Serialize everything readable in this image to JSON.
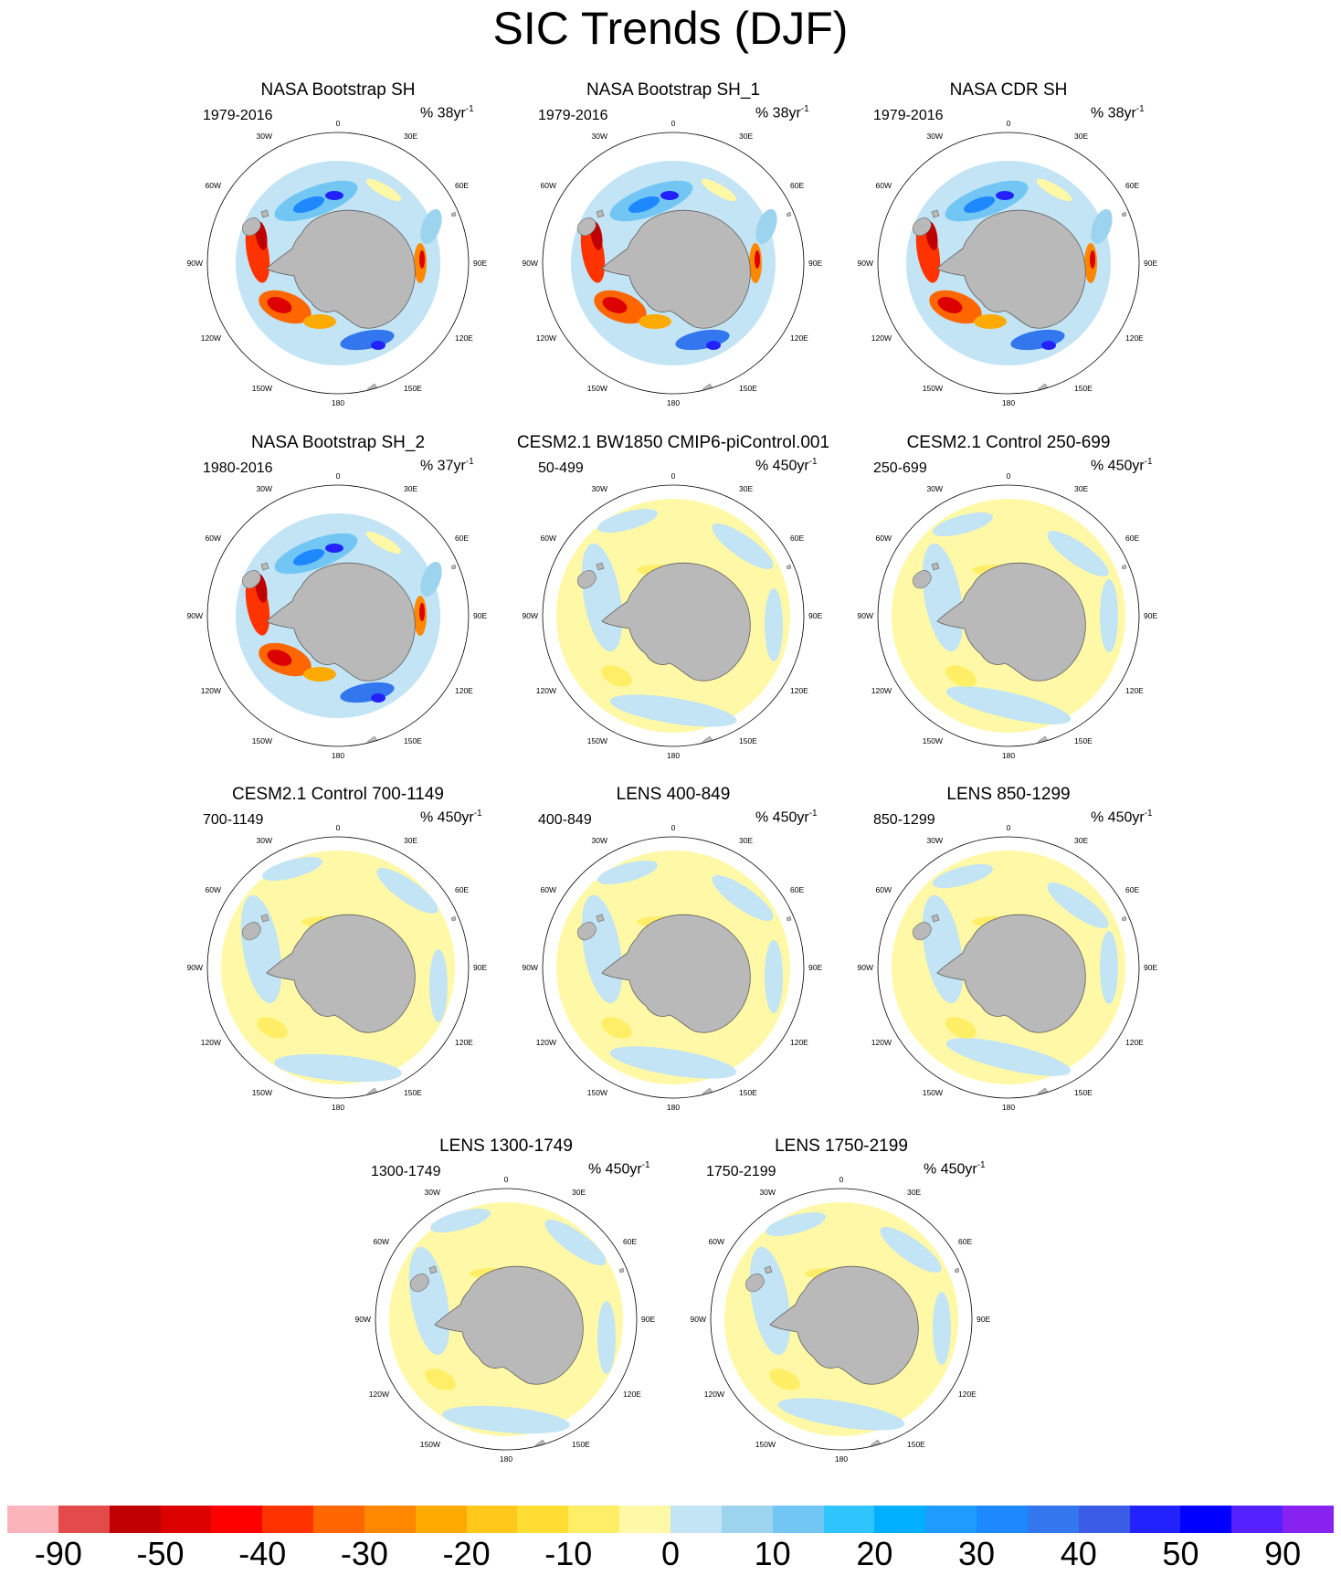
{
  "title": "SIC Trends (DJF)",
  "panels": [
    {
      "title": "NASA Bootstrap SH",
      "years": "1979-2016",
      "units_prefix": "% 38yr",
      "units_sup": "-1",
      "type": "obs"
    },
    {
      "title": "NASA Bootstrap SH_1",
      "years": "1979-2016",
      "units_prefix": "% 38yr",
      "units_sup": "-1",
      "type": "obs"
    },
    {
      "title": "NASA CDR SH",
      "years": "1979-2016",
      "units_prefix": "% 38yr",
      "units_sup": "-1",
      "type": "obs"
    },
    {
      "title": "NASA Bootstrap SH_2",
      "years": "1980-2016",
      "units_prefix": "% 37yr",
      "units_sup": "-1",
      "type": "obs"
    },
    {
      "title": "CESM2.1 BW1850 CMIP6-piControl.001",
      "years": "50-499",
      "units_prefix": "% 450yr",
      "units_sup": "-1",
      "type": "model"
    },
    {
      "title": "CESM2.1 Control 250-699",
      "years": "250-699",
      "units_prefix": "% 450yr",
      "units_sup": "-1",
      "type": "model"
    },
    {
      "title": "CESM2.1 Control 700-1149",
      "years": "700-1149",
      "units_prefix": "% 450yr",
      "units_sup": "-1",
      "type": "model"
    },
    {
      "title": "LENS 400-849",
      "years": "400-849",
      "units_prefix": "% 450yr",
      "units_sup": "-1",
      "type": "model"
    },
    {
      "title": "LENS 850-1299",
      "years": "850-1299",
      "units_prefix": "% 450yr",
      "units_sup": "-1",
      "type": "model"
    },
    {
      "title": "LENS 1300-1749",
      "years": "1300-1749",
      "units_prefix": "% 450yr",
      "units_sup": "-1",
      "type": "model"
    },
    {
      "title": "LENS 1750-2199",
      "years": "1750-2199",
      "units_prefix": "% 450yr",
      "units_sup": "-1",
      "type": "model"
    }
  ],
  "lon_labels": {
    "l0": "0",
    "l30e": "30E",
    "l60e": "60E",
    "l90e": "90E",
    "l120e": "120E",
    "l150e": "150E",
    "l180": "180",
    "l150w": "150W",
    "l120w": "120W",
    "l90w": "90W",
    "l60w": "60W",
    "l30w": "30W"
  },
  "colorbar": {
    "colors": [
      "#fbb4b9",
      "#e34a4a",
      "#c00000",
      "#dd0000",
      "#ff0000",
      "#ff3300",
      "#ff6600",
      "#ff8800",
      "#ffaa00",
      "#ffc81a",
      "#ffdd33",
      "#ffee66",
      "#fff8a6",
      "#c2e4f4",
      "#9cd3ef",
      "#72c6f3",
      "#2ec5ff",
      "#00b0ff",
      "#1e9bff",
      "#1e88ff",
      "#3377ee",
      "#3a5ce6",
      "#2222ff",
      "#0000ff",
      "#5522ff",
      "#8822ee"
    ],
    "labels": [
      "-90",
      "-50",
      "-40",
      "-30",
      "-20",
      "-10",
      "0",
      "10",
      "20",
      "30",
      "40",
      "50",
      "90"
    ]
  }
}
